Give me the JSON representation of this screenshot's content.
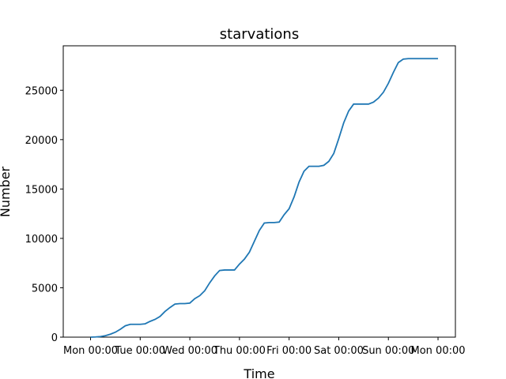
{
  "chart_data": {
    "type": "line",
    "title": "starvations",
    "xlabel": "Time",
    "ylabel": "Number",
    "x_tick_labels": [
      "Mon 00:00",
      "Tue 00:00",
      "Wed 00:00",
      "Thu 00:00",
      "Fri 00:00",
      "Sat 00:00",
      "Sun 00:00",
      "Mon 00:00"
    ],
    "y_tick_labels": [
      "0",
      "5000",
      "10000",
      "15000",
      "20000",
      "25000"
    ],
    "xlim_days": [
      -0.55,
      7.35
    ],
    "ylim": [
      0,
      29500
    ],
    "grid": false,
    "legend": "none",
    "line_color": "#1f77b4",
    "series": [
      {
        "x_days": [
          0.0,
          0.1,
          0.2,
          0.3,
          0.4,
          0.5,
          0.6,
          0.7,
          0.8,
          0.9,
          1.0,
          1.1,
          1.2,
          1.3,
          1.4,
          1.5,
          1.6,
          1.7,
          1.8,
          1.9,
          2.0,
          2.1,
          2.2,
          2.3,
          2.4,
          2.5,
          2.6,
          2.7,
          2.8,
          2.9,
          3.0,
          3.1,
          3.2,
          3.3,
          3.4,
          3.5,
          3.6,
          3.7,
          3.8,
          3.9,
          4.0,
          4.1,
          4.2,
          4.3,
          4.4,
          4.5,
          4.6,
          4.7,
          4.8,
          4.9,
          5.0,
          5.1,
          5.2,
          5.3,
          5.4,
          5.5,
          5.6,
          5.7,
          5.8,
          5.9,
          6.0,
          6.1,
          6.2,
          6.3,
          6.4,
          6.5,
          6.6,
          6.7,
          6.8,
          6.9,
          7.0
        ],
        "values": [
          0,
          20,
          60,
          150,
          300,
          500,
          800,
          1150,
          1300,
          1300,
          1300,
          1350,
          1600,
          1800,
          2100,
          2600,
          3000,
          3350,
          3400,
          3400,
          3450,
          3900,
          4200,
          4700,
          5500,
          6200,
          6750,
          6800,
          6800,
          6800,
          7400,
          7900,
          8600,
          9700,
          10800,
          11550,
          11600,
          11600,
          11650,
          12400,
          13000,
          14200,
          15700,
          16800,
          17300,
          17300,
          17300,
          17400,
          17800,
          18600,
          20100,
          21700,
          22900,
          23600,
          23600,
          23600,
          23600,
          23800,
          24200,
          24800,
          25700,
          26800,
          27800,
          28150,
          28200,
          28200,
          28200,
          28200,
          28200,
          28200,
          28200
        ]
      }
    ]
  }
}
